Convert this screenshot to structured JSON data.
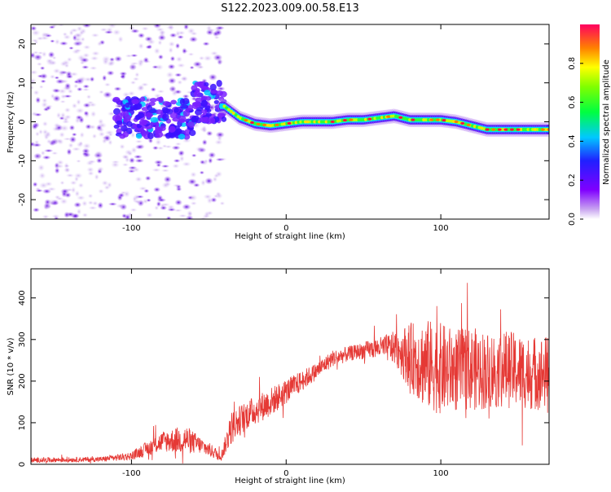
{
  "title": "S122.2023.009.00.58.E13",
  "chart_data": [
    {
      "type": "heatmap",
      "xlabel": "Height of straight line (km)",
      "ylabel": "Frequency (Hz)",
      "xlim": [
        -165,
        170
      ],
      "ylim": [
        -25,
        25
      ],
      "x_ticks": [
        -100,
        0,
        100
      ],
      "y_ticks": [
        -20,
        -10,
        0,
        10,
        20
      ],
      "colorbar": {
        "label": "Normalized spectral amplitude",
        "range": [
          0,
          1
        ],
        "ticks": [
          "0.0",
          "0.2",
          "0.4",
          "0.6",
          "0.8"
        ]
      },
      "ridge": {
        "x": [
          -40,
          -30,
          -20,
          -10,
          0,
          10,
          20,
          30,
          40,
          50,
          60,
          70,
          80,
          90,
          100,
          110,
          120,
          130,
          140,
          150,
          160,
          170
        ],
        "y": [
          4,
          1,
          -0.5,
          -1,
          -0.5,
          0,
          0,
          0,
          0.5,
          0.5,
          1,
          1.5,
          0.5,
          0.5,
          0.5,
          0,
          -1,
          -2,
          -2,
          -2,
          -2,
          -2
        ]
      }
    },
    {
      "type": "line",
      "xlabel": "Height of straight line (km)",
      "ylabel": "SNR (10 * v/v)",
      "xlim": [
        -165,
        170
      ],
      "ylim": [
        0,
        470
      ],
      "x_ticks": [
        -100,
        0,
        100
      ],
      "y_ticks": [
        0,
        100,
        200,
        300,
        400
      ],
      "color": "#e53935",
      "envelope": {
        "x": [
          -165,
          -120,
          -100,
          -80,
          -65,
          -55,
          -42,
          -35,
          -25,
          -10,
          0,
          10,
          20,
          30,
          45,
          60,
          70,
          80,
          90,
          100,
          110,
          120,
          130,
          140,
          150,
          160,
          170
        ],
        "mean": [
          10,
          12,
          20,
          55,
          60,
          45,
          20,
          90,
          120,
          150,
          175,
          200,
          225,
          255,
          270,
          280,
          280,
          260,
          240,
          230,
          225,
          230,
          225,
          230,
          225,
          220,
          220
        ],
        "amplitude": [
          6,
          6,
          10,
          25,
          35,
          20,
          12,
          40,
          35,
          35,
          30,
          25,
          20,
          20,
          18,
          25,
          40,
          80,
          110,
          110,
          100,
          100,
          95,
          95,
          90,
          90,
          90
        ]
      }
    }
  ]
}
